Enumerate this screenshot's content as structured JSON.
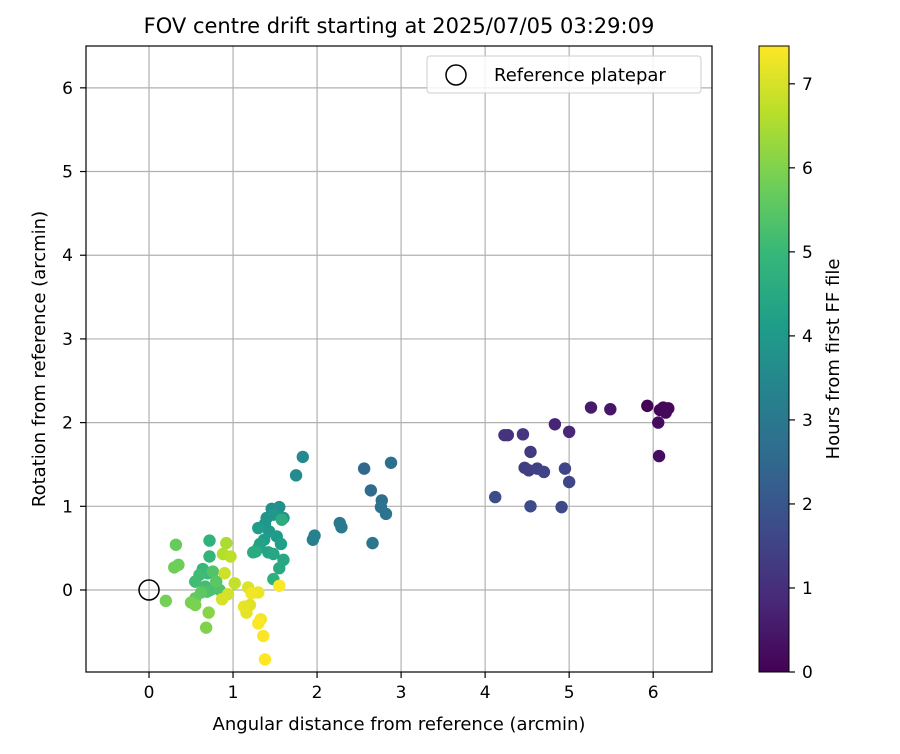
{
  "chart_data": {
    "type": "scatter",
    "title": "FOV centre drift starting at 2025/07/05 03:29:09",
    "xlabel": "Angular distance from reference (arcmin)",
    "ylabel": "Rotation from reference (arcmin)",
    "xlim": [
      -0.75,
      6.7
    ],
    "ylim": [
      -0.98,
      6.5
    ],
    "xticks": [
      0,
      1,
      2,
      3,
      4,
      5,
      6
    ],
    "yticks": [
      0,
      1,
      2,
      3,
      4,
      5,
      6
    ],
    "grid": true,
    "legend": {
      "position": "top-right",
      "entries": [
        "Reference platepar"
      ]
    },
    "reference_point": {
      "x": 0,
      "y": 0
    },
    "colorbar": {
      "label": "Hours from first FF file",
      "colormap": "viridis",
      "range": [
        0,
        7.45
      ],
      "ticks": [
        0,
        1,
        2,
        3,
        4,
        5,
        6,
        7
      ],
      "colormap_stops": [
        "#440154",
        "#482878",
        "#3e4989",
        "#31688e",
        "#26828e",
        "#1f9e89",
        "#35b779",
        "#6ece58",
        "#b5de2b",
        "#fde725"
      ]
    },
    "series": [
      {
        "x": [
          5.93,
          6.08,
          6.12,
          6.18,
          6.15,
          6.06,
          6.07,
          5.49,
          5.26,
          4.83,
          5.0,
          4.27,
          4.23,
          4.45,
          4.54,
          4.47,
          4.52,
          4.62,
          4.7,
          4.95,
          5.0,
          4.91,
          4.54,
          4.12,
          2.56,
          2.64,
          2.77,
          2.88,
          2.76,
          2.82,
          2.66,
          2.27,
          2.29,
          1.95,
          1.97,
          1.83,
          1.75,
          1.46,
          1.55,
          1.6,
          1.4,
          1.38,
          1.48,
          1.43,
          1.52,
          1.3,
          1.37,
          1.57,
          1.3,
          1.32,
          1.42,
          1.48,
          1.6,
          1.55,
          1.27,
          1.24,
          1.58,
          1.48,
          0.72,
          0.72,
          0.64,
          0.7,
          0.6,
          0.55,
          0.67,
          0.73,
          0.69,
          0.84,
          0.76,
          0.8,
          0.62,
          0.55,
          0.32,
          0.35,
          0.3,
          0.2,
          0.5,
          0.55,
          0.68,
          0.71,
          0.92,
          0.88,
          0.97,
          1.02,
          0.9,
          0.94,
          0.87,
          1.18,
          1.2,
          1.16,
          1.13,
          1.3,
          1.22,
          1.33,
          1.36,
          1.55,
          1.3,
          1.38
        ],
        "y": [
          2.2,
          2.15,
          2.18,
          2.17,
          2.12,
          2.0,
          1.6,
          2.16,
          2.18,
          1.98,
          1.89,
          1.85,
          1.85,
          1.86,
          1.65,
          1.46,
          1.43,
          1.45,
          1.41,
          1.45,
          1.29,
          0.99,
          1.0,
          1.11,
          1.45,
          1.19,
          1.07,
          1.52,
          0.99,
          0.91,
          0.56,
          0.8,
          0.75,
          0.6,
          0.65,
          1.59,
          1.37,
          0.97,
          0.99,
          0.86,
          0.86,
          0.79,
          0.9,
          0.7,
          0.64,
          0.74,
          0.6,
          0.55,
          0.5,
          0.55,
          0.45,
          0.43,
          0.36,
          0.26,
          0.46,
          0.45,
          0.84,
          0.13,
          0.59,
          0.4,
          0.25,
          0.2,
          0.18,
          0.1,
          0.04,
          0.0,
          -0.02,
          0.0,
          0.22,
          0.1,
          -0.03,
          -0.1,
          0.54,
          0.3,
          0.27,
          -0.13,
          -0.15,
          -0.18,
          -0.45,
          -0.27,
          0.56,
          0.43,
          0.4,
          0.08,
          0.2,
          -0.05,
          -0.11,
          0.03,
          -0.18,
          -0.27,
          -0.2,
          -0.03,
          -0.04,
          -0.35,
          -0.55,
          0.05,
          -0.4,
          -0.83
        ],
        "hours": [
          0.05,
          0.08,
          0.12,
          0.15,
          0.18,
          0.22,
          0.25,
          0.45,
          0.55,
          0.75,
          0.85,
          1.05,
          1.1,
          1.2,
          1.3,
          1.35,
          1.4,
          1.45,
          1.5,
          1.55,
          1.6,
          1.65,
          1.7,
          1.8,
          2.5,
          2.6,
          2.7,
          2.75,
          2.8,
          2.85,
          2.9,
          3.0,
          3.05,
          3.2,
          3.25,
          3.55,
          3.6,
          3.7,
          3.75,
          3.8,
          3.85,
          3.9,
          3.95,
          4.0,
          4.05,
          4.1,
          4.15,
          4.2,
          4.25,
          4.3,
          4.35,
          4.4,
          4.45,
          4.5,
          4.55,
          4.6,
          4.65,
          4.7,
          4.8,
          4.9,
          5.0,
          5.05,
          5.1,
          5.15,
          5.2,
          5.25,
          5.3,
          5.35,
          5.4,
          5.5,
          5.55,
          5.6,
          5.7,
          5.75,
          5.8,
          5.85,
          5.9,
          5.95,
          6.0,
          6.1,
          6.5,
          6.6,
          6.7,
          6.8,
          6.9,
          6.95,
          7.0,
          7.05,
          7.1,
          7.15,
          7.2,
          7.25,
          7.3,
          7.35,
          7.4,
          7.42,
          7.44,
          7.45
        ]
      }
    ]
  }
}
